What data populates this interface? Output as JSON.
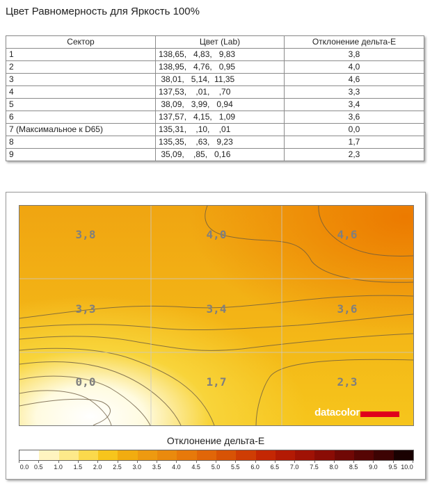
{
  "title": "Цвет Равномерность для Яркость 100%",
  "table": {
    "headers": [
      "Сектор",
      "Цвет (Lab)",
      "Отклонение дельта-E"
    ],
    "rows": [
      {
        "sector": "1",
        "lab": "138,65,   4,83,   9,83",
        "de": "3,8"
      },
      {
        "sector": "2",
        "lab": "138,95,   4,76,   0,95",
        "de": "4,0"
      },
      {
        "sector": "3",
        "lab": " 38,01,   5,14,  11,35",
        "de": "4,6"
      },
      {
        "sector": "4",
        "lab": "137,53,    ,01,    ,70",
        "de": "3,3"
      },
      {
        "sector": "5",
        "lab": " 38,09,   3,99,   0,94",
        "de": "3,4"
      },
      {
        "sector": "6",
        "lab": "137,57,   4,15,   1,09",
        "de": "3,6"
      },
      {
        "sector": "7 (Максимальное к D65)",
        "lab": "135,31,    ,10,    ,01",
        "de": "0,0"
      },
      {
        "sector": "8",
        "lab": "135,35,    ,63,   9,23",
        "de": "1,7"
      },
      {
        "sector": "9",
        "lab": " 35,09,    ,85,   0,16",
        "de": "2,3"
      }
    ]
  },
  "heatmap": {
    "cells": [
      [
        "3,8",
        "4,0",
        "4,6"
      ],
      [
        "3,3",
        "3,4",
        "3,6"
      ],
      [
        "0,0",
        "1,7",
        "2,3"
      ]
    ],
    "brand": "datacolor",
    "colors": {
      "low": "#ffffff",
      "mid": "#f5c31c",
      "high": "#eb8000"
    }
  },
  "legend": {
    "title": "Отклонение дельта-E",
    "ticks": [
      "0.0",
      "0.5",
      "1.0",
      "1.5",
      "2.0",
      "2.5",
      "3.0",
      "3.5",
      "4.0",
      "4.5",
      "5.0",
      "5.5",
      "6.0",
      "6.5",
      "7.0",
      "7.5",
      "8.0",
      "8.5",
      "9.0",
      "9.5",
      "10.0"
    ],
    "colors": [
      "#ffffff",
      "#fff4c0",
      "#fde98a",
      "#fbd94c",
      "#f7c51c",
      "#f2ac10",
      "#ee9a10",
      "#ea8a0d",
      "#e7790a",
      "#e16608",
      "#d85305",
      "#cf3d04",
      "#c42703",
      "#b31a04",
      "#a01205",
      "#8a0c05",
      "#700805",
      "#560504",
      "#3d0303",
      "#1a0101"
    ]
  }
}
